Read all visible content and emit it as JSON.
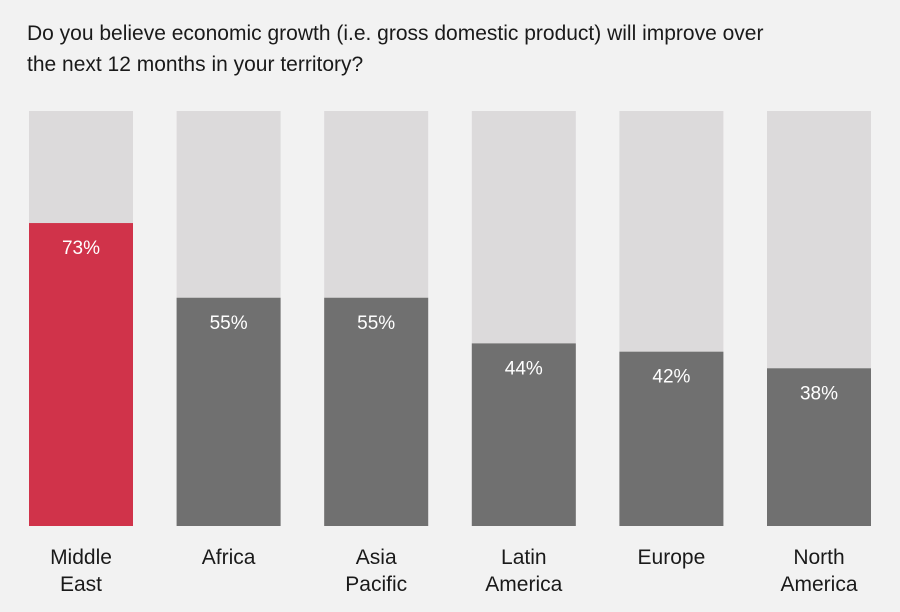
{
  "title": "Do you believe economic growth (i.e. gross domestic product) will improve over the next 12 months in your territory?",
  "colors": {
    "background": "#f2f2f2",
    "track": "#dcdadb",
    "highlight": "#d0334a",
    "bar": "#707070",
    "value_text": "#ffffff"
  },
  "chart_data": {
    "type": "bar",
    "title": "Do you believe economic growth (i.e. gross domestic product) will improve over the next 12 months in your territory?",
    "categories": [
      [
        "Middle",
        "East"
      ],
      [
        "Africa"
      ],
      [
        "Asia",
        "Pacific"
      ],
      [
        "Latin",
        "America"
      ],
      [
        "Europe"
      ],
      [
        "North",
        "America"
      ]
    ],
    "values": [
      73,
      55,
      55,
      44,
      42,
      38
    ],
    "value_labels": [
      "73%",
      "55%",
      "55%",
      "44%",
      "42%",
      "38%"
    ],
    "highlight_index": 0,
    "ylim": [
      0,
      100
    ],
    "grid": false,
    "legend": "none"
  }
}
